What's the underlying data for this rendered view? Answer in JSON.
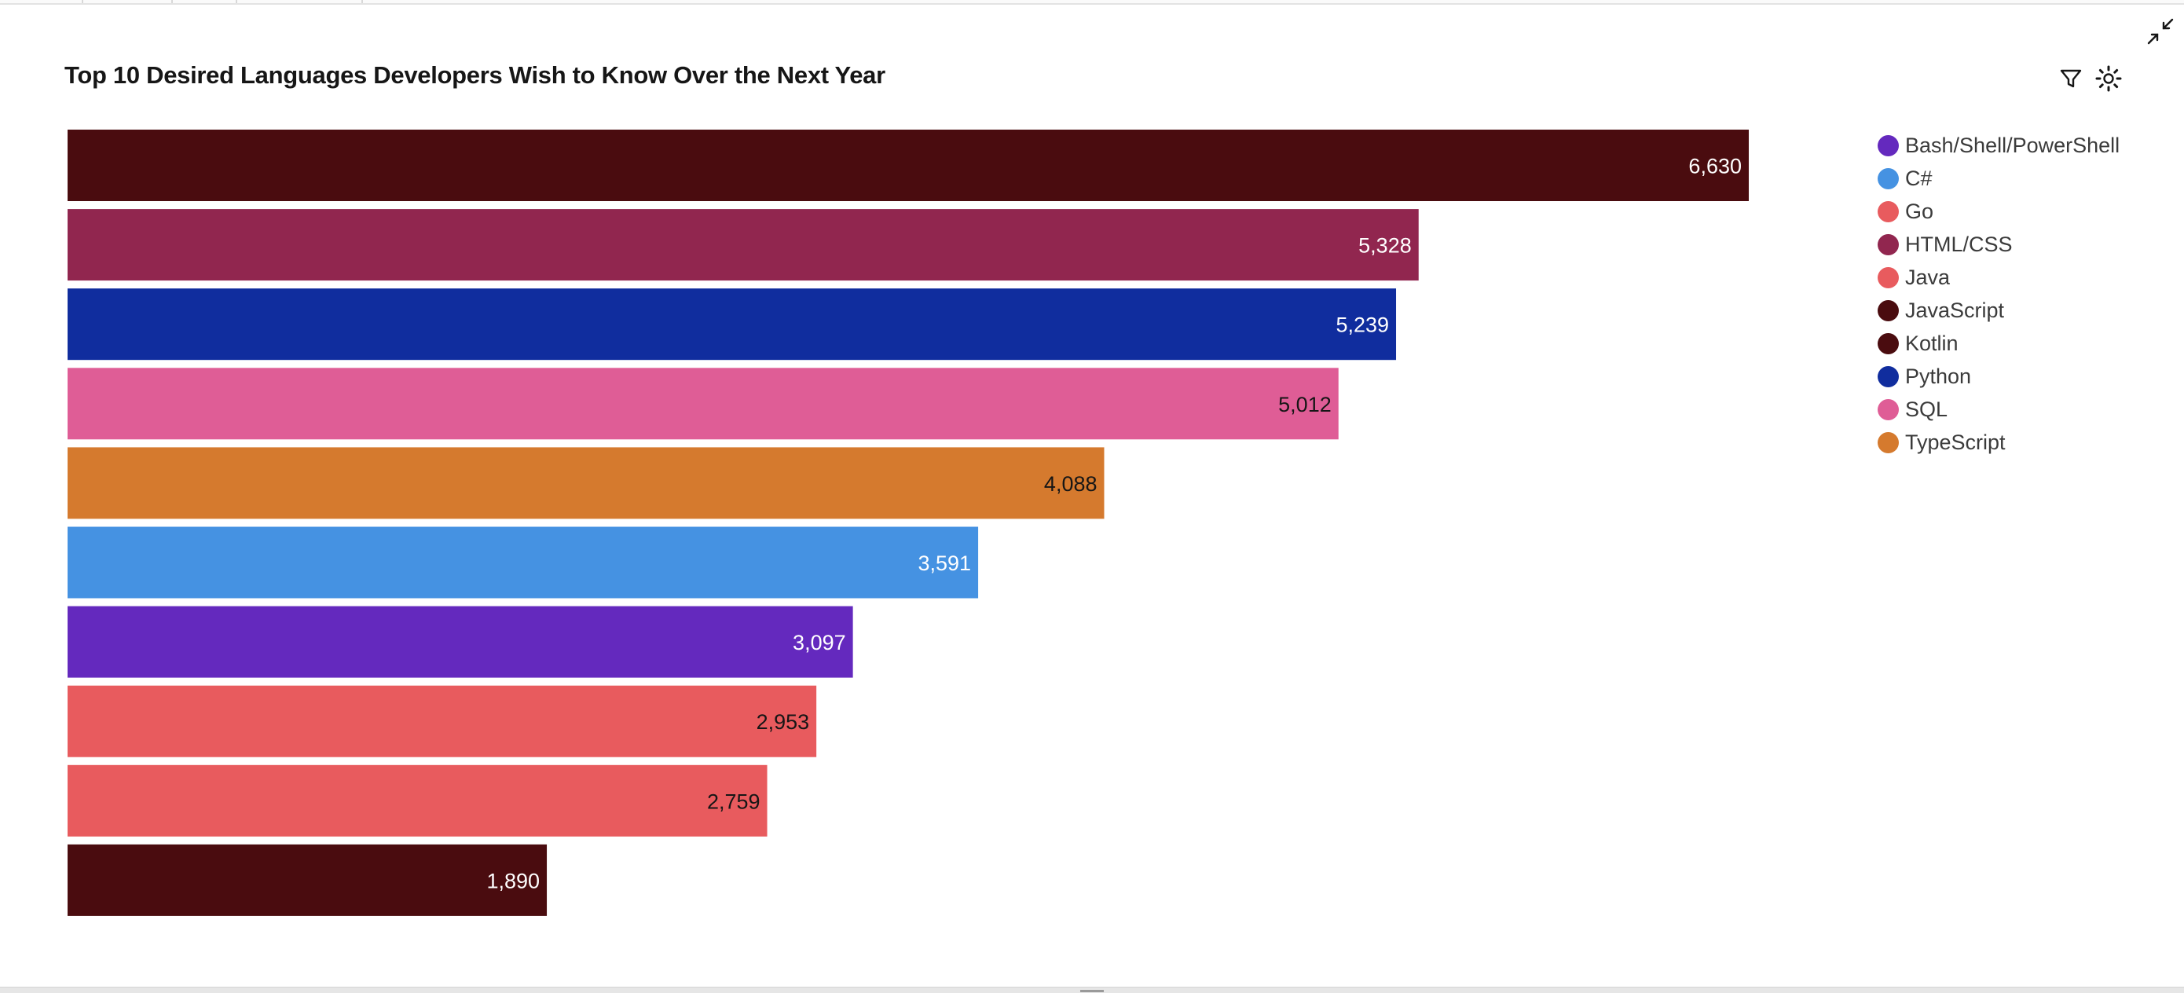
{
  "chart_data": {
    "type": "bar",
    "orientation": "horizontal",
    "title": "Top 10 Desired Languages Developers Wish to Know Over the Next Year",
    "categories": [
      "JavaScript",
      "HTML/CSS",
      "Python",
      "SQL",
      "TypeScript",
      "C#",
      "Bash/Shell/PowerShell",
      "Java",
      "Go",
      "Kotlin"
    ],
    "values": [
      6630,
      5328,
      5239,
      5012,
      4088,
      3591,
      3097,
      2953,
      2759,
      1890
    ],
    "value_labels": [
      "6,630",
      "5,328",
      "5,239",
      "5,012",
      "4,088",
      "3,591",
      "3,097",
      "2,953",
      "2,759",
      "1,890"
    ],
    "xlim": [
      0,
      6630
    ],
    "grid": false,
    "legend": {
      "placement": "right",
      "items": [
        {
          "label": "Bash/Shell/PowerShell",
          "color": "#6429be"
        },
        {
          "label": "C#",
          "color": "#4592e2"
        },
        {
          "label": "Go",
          "color": "#e85b5e"
        },
        {
          "label": "HTML/CSS",
          "color": "#91264f"
        },
        {
          "label": "Java",
          "color": "#e85b5e"
        },
        {
          "label": "JavaScript",
          "color": "#4a0c0f"
        },
        {
          "label": "Kotlin",
          "color": "#4a0c0f"
        },
        {
          "label": "Python",
          "color": "#102d9e"
        },
        {
          "label": "SQL",
          "color": "#df5d96"
        },
        {
          "label": "TypeScript",
          "color": "#d57a2e"
        }
      ]
    },
    "colors": {
      "JavaScript": "#4a0c0f",
      "HTML/CSS": "#91264f",
      "Python": "#102d9e",
      "SQL": "#df5d96",
      "TypeScript": "#d57a2e",
      "C#": "#4592e2",
      "Bash/Shell/PowerShell": "#6429be",
      "Java": "#e85b5e",
      "Go": "#e85b5e",
      "Kotlin": "#4a0c0f"
    },
    "label_colors": {
      "JavaScript": "#ffffff",
      "HTML/CSS": "#ffffff",
      "Python": "#ffffff",
      "SQL": "#161616",
      "TypeScript": "#161616",
      "C#": "#ffffff",
      "Bash/Shell/PowerShell": "#ffffff",
      "Java": "#161616",
      "Go": "#161616",
      "Kotlin": "#ffffff"
    }
  },
  "toolbar": {
    "icons": [
      "filter-icon",
      "settings-icon",
      "collapse-icon"
    ]
  }
}
